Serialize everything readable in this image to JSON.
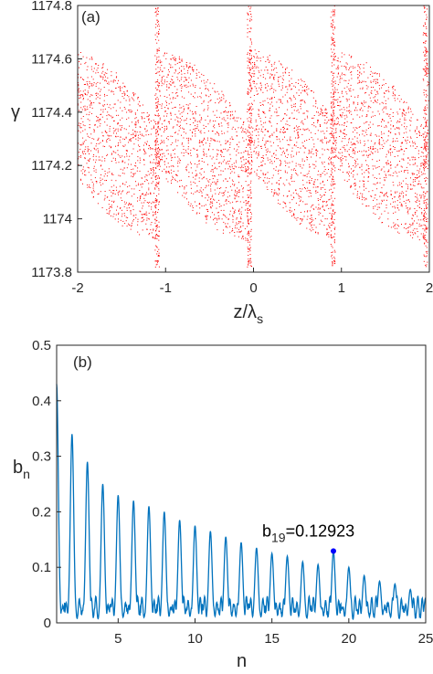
{
  "chart_data": [
    {
      "type": "scatter",
      "panel_label": "(a)",
      "xlabel": "z/λ",
      "xlabel_sub": "s",
      "ylabel": "γ",
      "xlim": [
        -2,
        2
      ],
      "ylim": [
        1173.8,
        1174.8
      ],
      "x_ticks": [
        -2,
        -1,
        0,
        1,
        2
      ],
      "x_tick_labels": [
        "-2",
        "-1",
        "0",
        "1",
        "2"
      ],
      "y_ticks": [
        1173.8,
        1174,
        1174.2,
        1174.4,
        1174.6,
        1174.8
      ],
      "y_tick_labels": [
        "1173.8",
        "1174",
        "1174.2",
        "1174.4",
        "1174.6",
        "1174.8"
      ],
      "grid": false,
      "series": [
        {
          "color": "#ff0000",
          "marker": "dot",
          "pattern": "sawtooth phase-space distribution with period 1 in z/λs; dense columns at integer positions",
          "wrap_positions": [
            -1.1,
            -0.05,
            0.9,
            1.95
          ],
          "envelope_points": [
            [
              -2.0,
              1174.15,
              1174.75
            ],
            [
              -1.6,
              1173.95,
              1174.6
            ],
            [
              -1.2,
              1173.82,
              1174.45
            ],
            [
              -1.1,
              1173.85,
              1174.78
            ],
            [
              -0.6,
              1174.0,
              1174.55
            ],
            [
              -0.15,
              1173.82,
              1174.42
            ],
            [
              -0.05,
              1173.9,
              1174.78
            ],
            [
              0.5,
              1173.95,
              1174.55
            ],
            [
              0.85,
              1173.82,
              1174.42
            ],
            [
              0.9,
              1173.88,
              1174.75
            ],
            [
              1.5,
              1173.95,
              1174.55
            ],
            [
              1.9,
              1173.82,
              1174.42
            ],
            [
              1.95,
              1173.88,
              1174.78
            ],
            [
              2.0,
              1174.0,
              1174.7
            ]
          ]
        }
      ]
    },
    {
      "type": "line",
      "panel_label": "(b)",
      "xlabel": "n",
      "ylabel": "b",
      "ylabel_sub": "n",
      "xlim": [
        1,
        25
      ],
      "ylim": [
        0,
        0.5
      ],
      "x_ticks": [
        5,
        10,
        15,
        20,
        25
      ],
      "x_tick_labels": [
        "5",
        "10",
        "15",
        "20",
        "25"
      ],
      "y_ticks": [
        0,
        0.1,
        0.2,
        0.3,
        0.4,
        0.5
      ],
      "y_tick_labels": [
        "0",
        "0.1",
        "0.2",
        "0.3",
        "0.4",
        "0.5"
      ],
      "grid": false,
      "series": [
        {
          "color": "#0072bd",
          "peak_n": [
            1,
            2,
            3,
            4,
            5,
            6,
            7,
            8,
            9,
            10,
            11,
            12,
            13,
            14,
            15,
            16,
            17,
            18,
            19,
            20,
            21,
            22,
            23,
            24,
            25
          ],
          "peak_values": [
            0.43,
            0.34,
            0.29,
            0.25,
            0.23,
            0.22,
            0.21,
            0.2,
            0.185,
            0.175,
            0.165,
            0.155,
            0.145,
            0.135,
            0.125,
            0.12,
            0.11,
            0.105,
            0.12923,
            0.1,
            0.085,
            0.075,
            0.07,
            0.06,
            0.045
          ],
          "background_level": 0.03
        }
      ],
      "annotation": {
        "label": "b",
        "label_sub": "19",
        "value_text": "=0.12923",
        "x": 19,
        "y": 0.12923,
        "marker_color": "#0000ff"
      }
    }
  ]
}
